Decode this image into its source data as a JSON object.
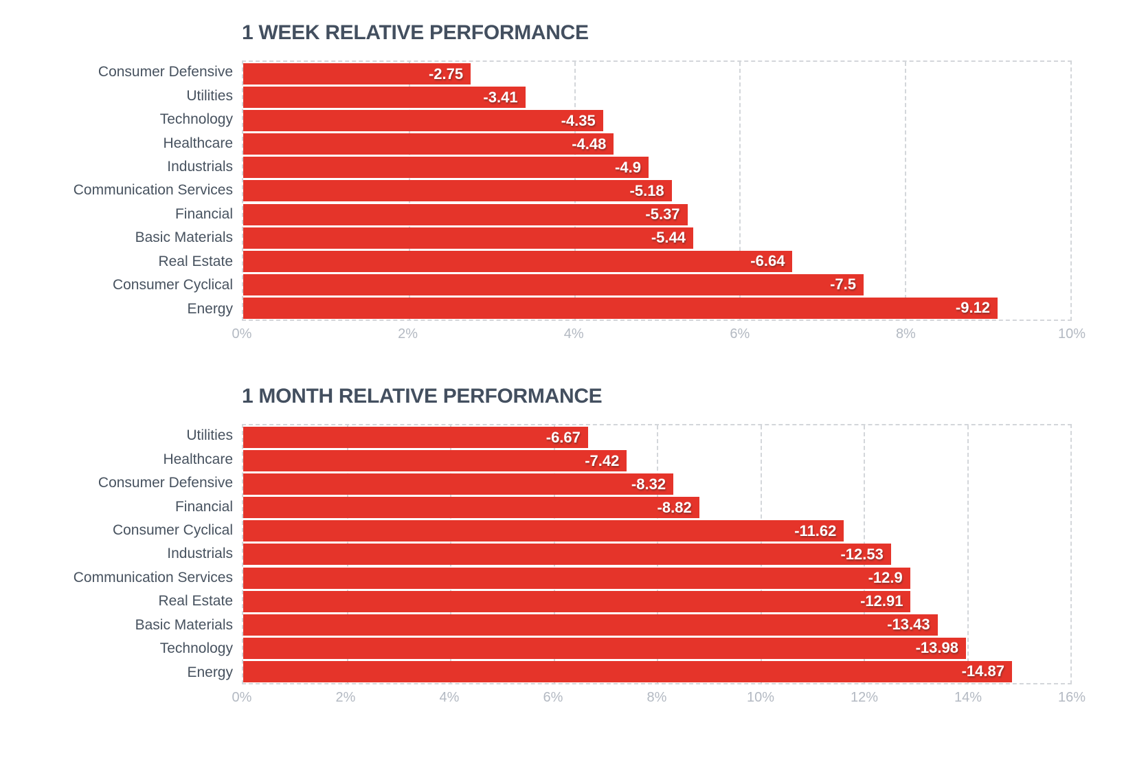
{
  "colors": {
    "bar": "#e5342a",
    "title_text": "#434f5f",
    "category_text": "#47525f",
    "axis_text": "#b3b9c2",
    "gridline": "#d3d6da",
    "value_text": "#ffffff"
  },
  "chart_data": [
    {
      "type": "bar",
      "orientation": "horizontal",
      "title": "1 WEEK RELATIVE PERFORMANCE",
      "categories": [
        "Consumer Defensive",
        "Utilities",
        "Technology",
        "Healthcare",
        "Industrials",
        "Communication Services",
        "Financial",
        "Basic Materials",
        "Real Estate",
        "Consumer Cyclical",
        "Energy"
      ],
      "values": [
        -2.75,
        -3.41,
        -4.35,
        -4.48,
        -4.9,
        -5.18,
        -5.37,
        -5.44,
        -6.64,
        -7.5,
        -9.12
      ],
      "value_labels": [
        "-2.75",
        "-3.41",
        "-4.35",
        "-4.48",
        "-4.9",
        "-5.18",
        "-5.37",
        "-5.44",
        "-6.64",
        "-7.5",
        "-9.12"
      ],
      "xlim": [
        0,
        10
      ],
      "ticks": [
        {
          "value": 0,
          "label": "0%"
        },
        {
          "value": 2,
          "label": "2%"
        },
        {
          "value": 4,
          "label": "4%"
        },
        {
          "value": 6,
          "label": "6%"
        },
        {
          "value": 8,
          "label": "8%"
        },
        {
          "value": 10,
          "label": "10%"
        }
      ],
      "grid": "dashed vertical gridlines, dashed plot border",
      "legend": "none",
      "bars_plotted_as": "absolute value of negative performance on positive axis, value labels inside bar ends"
    },
    {
      "type": "bar",
      "orientation": "horizontal",
      "title": "1 MONTH RELATIVE PERFORMANCE",
      "categories": [
        "Utilities",
        "Healthcare",
        "Consumer Defensive",
        "Financial",
        "Consumer Cyclical",
        "Industrials",
        "Communication Services",
        "Real Estate",
        "Basic Materials",
        "Technology",
        "Energy"
      ],
      "values": [
        -6.67,
        -7.42,
        -8.32,
        -8.82,
        -11.62,
        -12.53,
        -12.9,
        -12.91,
        -13.43,
        -13.98,
        -14.87
      ],
      "value_labels": [
        "-6.67",
        "-7.42",
        "-8.32",
        "-8.82",
        "-11.62",
        "-12.53",
        "-12.9",
        "-12.91",
        "-13.43",
        "-13.98",
        "-14.87"
      ],
      "xlim": [
        0,
        16
      ],
      "ticks": [
        {
          "value": 0,
          "label": "0%"
        },
        {
          "value": 2,
          "label": "2%"
        },
        {
          "value": 4,
          "label": "4%"
        },
        {
          "value": 6,
          "label": "6%"
        },
        {
          "value": 8,
          "label": "8%"
        },
        {
          "value": 10,
          "label": "10%"
        },
        {
          "value": 12,
          "label": "12%"
        },
        {
          "value": 14,
          "label": "14%"
        },
        {
          "value": 16,
          "label": "16%"
        }
      ],
      "grid": "dashed vertical gridlines, dashed plot border",
      "legend": "none",
      "bars_plotted_as": "absolute value of negative performance on positive axis, value labels inside bar ends"
    }
  ]
}
